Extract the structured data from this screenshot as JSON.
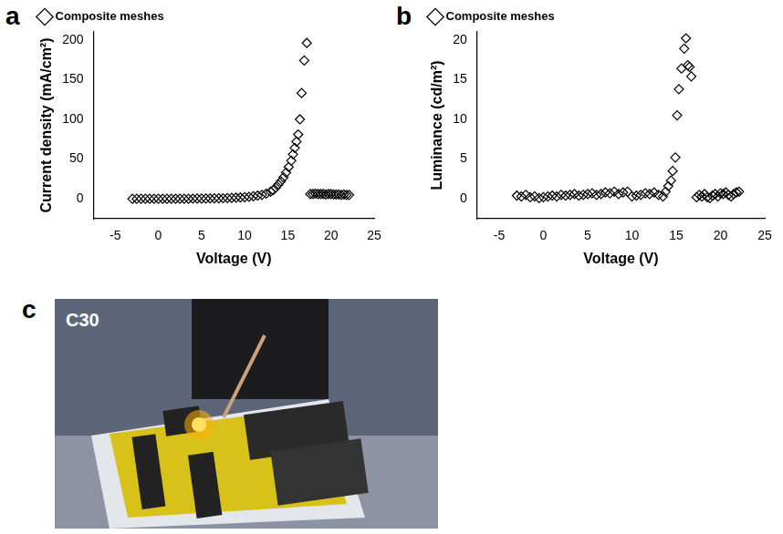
{
  "chart_data": [
    {
      "panel_label": "a",
      "type": "scatter",
      "x_label": "Voltage (V)",
      "y_label": "Current density (mA/cm²)",
      "xlim": [
        -7.5,
        25
      ],
      "xticks": [
        -5,
        0,
        5,
        10,
        15,
        20,
        25
      ],
      "ylim": [
        -25,
        210
      ],
      "yticks": [
        0,
        50,
        100,
        150,
        200
      ],
      "grid": false,
      "legend": "top-left",
      "series": [
        {
          "name": "Composite meshes",
          "color": "#000000",
          "marker": "diamond",
          "x": [
            -3,
            -2.5,
            -2,
            -1.5,
            -1,
            -0.5,
            0,
            0.5,
            1,
            1.5,
            2,
            2.5,
            3,
            3.5,
            4,
            4.5,
            5,
            5.5,
            6,
            6.5,
            7,
            7.5,
            8,
            8.5,
            9,
            9.5,
            10,
            10.5,
            11,
            11.5,
            12,
            12.5,
            13,
            13.3,
            13.6,
            13.9,
            14.2,
            14.5,
            14.8,
            15.1,
            15.4,
            15.6,
            15.8,
            16,
            16.2,
            16.4,
            16.6,
            16.9,
            17.2,
            17.6,
            17.9,
            18.2,
            18.5,
            18.8,
            19.1,
            19.4,
            19.7,
            20,
            20.3,
            20.6,
            20.9,
            21.2,
            21.5,
            21.8,
            22.1
          ],
          "values": [
            0,
            0,
            0,
            0,
            0,
            0,
            0,
            0,
            0,
            0,
            0,
            0,
            0,
            0,
            0.2,
            0.3,
            0.3,
            0.4,
            0.5,
            0.6,
            0.7,
            0.8,
            1,
            1.2,
            1.4,
            1.7,
            2,
            2.5,
            3.2,
            4,
            5,
            6.5,
            9,
            11,
            14,
            18,
            22,
            27,
            33,
            40,
            48,
            56,
            64,
            72,
            81,
            100,
            133,
            174,
            196,
            6,
            6,
            6.5,
            6,
            6,
            6,
            5.5,
            6,
            6,
            5.5,
            5.5,
            5.5,
            5,
            5.5,
            5,
            5
          ]
        }
      ]
    },
    {
      "panel_label": "b",
      "type": "scatter",
      "x_label": "Voltage (V)",
      "y_label": "Luminance (cd/m²)",
      "xlim": [
        -7.5,
        25
      ],
      "xticks": [
        -5,
        0,
        5,
        10,
        15,
        20,
        25
      ],
      "ylim": [
        -2.5,
        21
      ],
      "yticks": [
        0,
        5,
        10,
        15,
        20
      ],
      "grid": false,
      "legend": "top-left",
      "series": [
        {
          "name": "Composite meshes",
          "color": "#000000",
          "marker": "diamond",
          "x": [
            -3,
            -2.5,
            -2,
            -1.5,
            -1,
            -0.5,
            0,
            0.5,
            1,
            1.5,
            2,
            2.5,
            3,
            3.5,
            4,
            4.5,
            5,
            5.5,
            6,
            6.5,
            7,
            7.5,
            8,
            8.5,
            9,
            9.5,
            10,
            10.5,
            11,
            11.5,
            12,
            12.5,
            13,
            13.5,
            13.8,
            14.1,
            14.4,
            14.6,
            14.9,
            15.1,
            15.3,
            15.6,
            15.9,
            16.1,
            16.3,
            16.5,
            16.7,
            17.3,
            17.6,
            17.9,
            18.2,
            18.5,
            18.8,
            19.1,
            19.4,
            19.7,
            20,
            20.3,
            20.6,
            20.9,
            21.2,
            21.5,
            21.8,
            22.1
          ],
          "values": [
            0.4,
            0.3,
            0.5,
            0.2,
            0.3,
            0.1,
            0.2,
            0.3,
            0.4,
            0.3,
            0.5,
            0.4,
            0.5,
            0.6,
            0.4,
            0.5,
            0.6,
            0.7,
            0.5,
            0.6,
            0.8,
            0.7,
            0.9,
            0.6,
            0.8,
            0.9,
            0.3,
            0.4,
            0.5,
            0.7,
            0.6,
            0.8,
            0.5,
            0.3,
            0.9,
            1.6,
            2.3,
            3.5,
            5.2,
            10.5,
            13.8,
            16.4,
            18.9,
            20.2,
            16.8,
            16.6,
            15.4,
            0.2,
            0.5,
            0.3,
            0.6,
            0.2,
            0.1,
            0.4,
            0.6,
            0.3,
            0.7,
            0.6,
            0.8,
            0.5,
            0.3,
            0.6,
            0.8,
            0.9
          ]
        }
      ]
    }
  ],
  "photo": {
    "panel_label": "c",
    "label": "C30"
  }
}
